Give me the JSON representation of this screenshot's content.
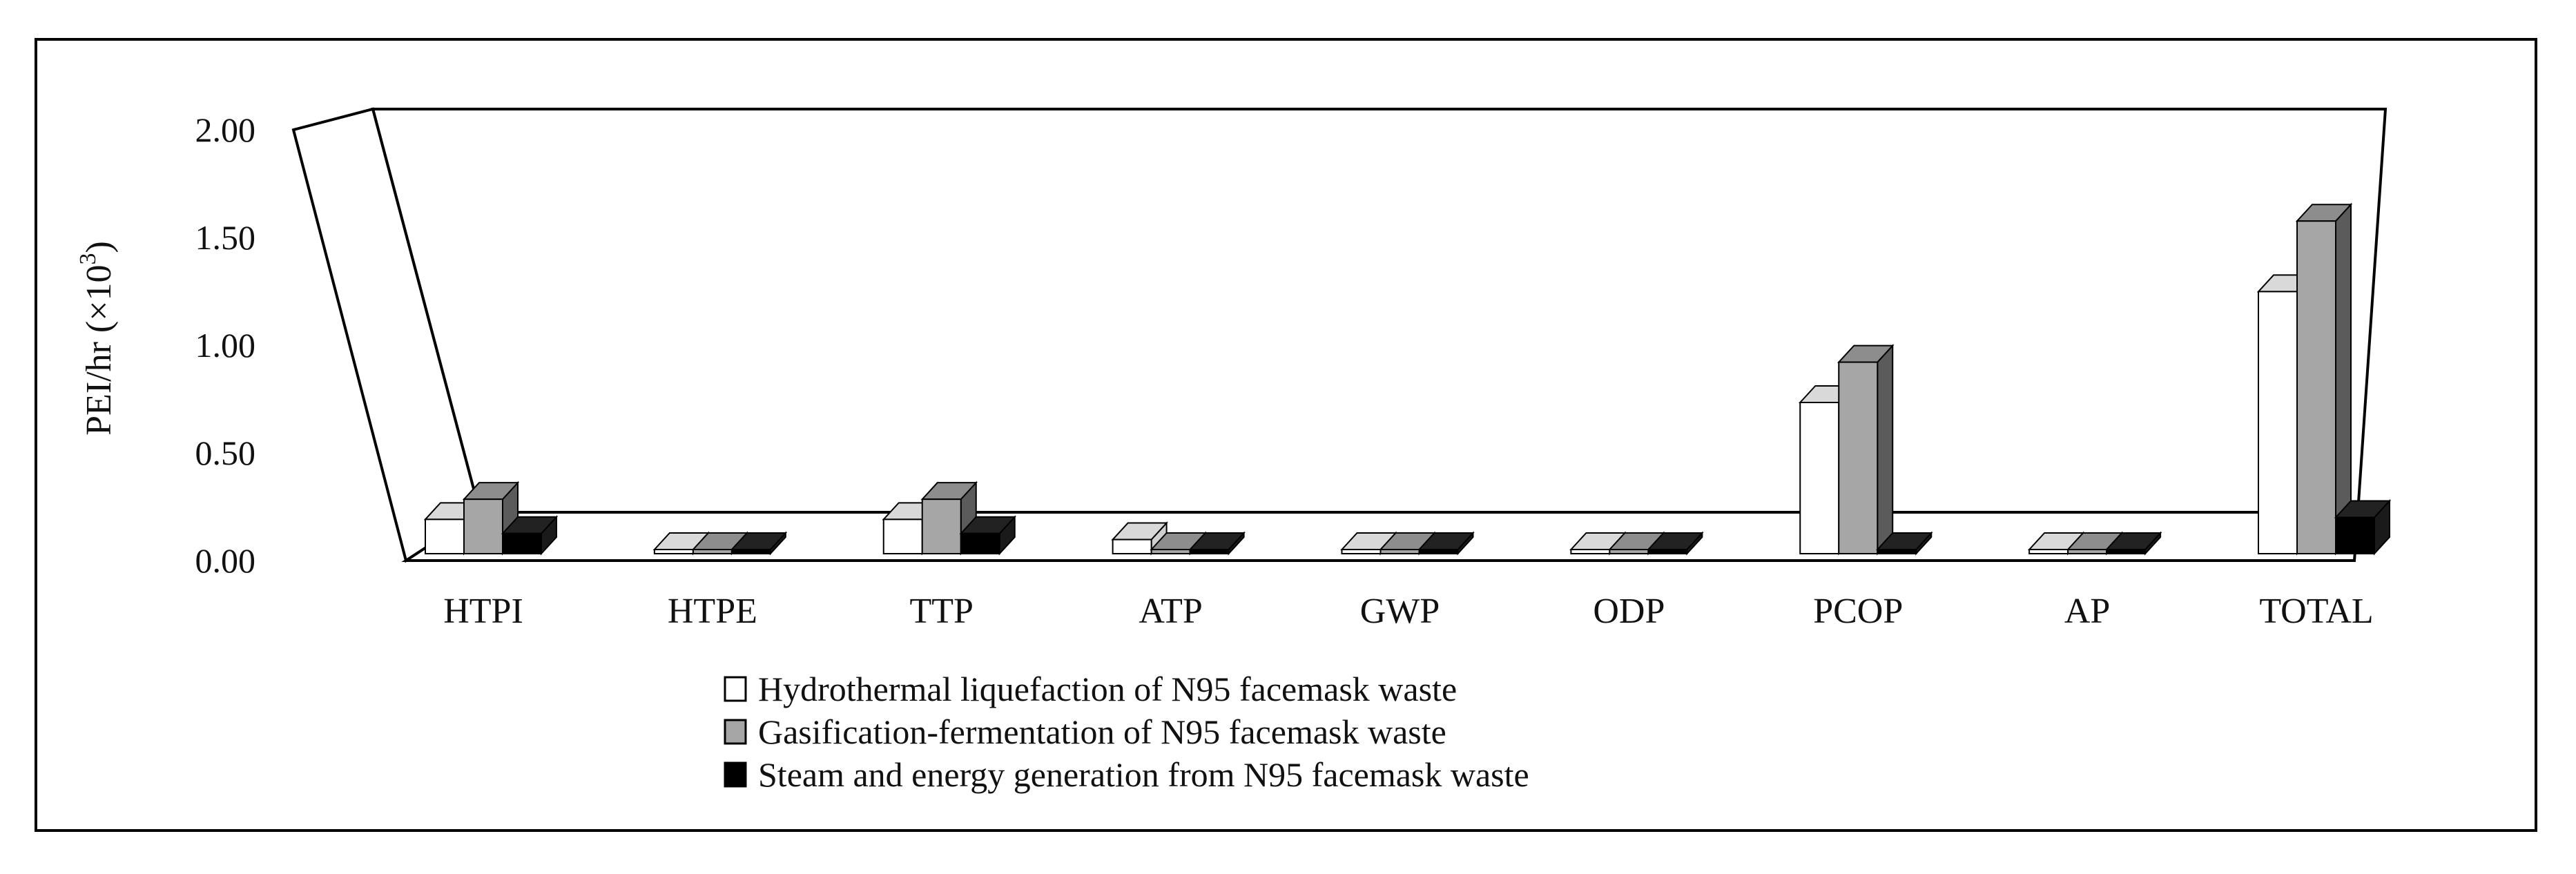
{
  "chart_data": {
    "type": "bar",
    "style": "3d-clustered-column",
    "title": "",
    "xlabel": "",
    "ylabel": "PEI/hr (×10",
    "ylabel_sup": "3",
    "ylabel_suffix": ")",
    "ylim": [
      0,
      2.0
    ],
    "yticks": [
      "0.00",
      "0.50",
      "1.00",
      "1.50",
      "2.00"
    ],
    "ytick_values": [
      0,
      0.5,
      1.0,
      1.5,
      2.0
    ],
    "categories": [
      "HTPI",
      "HTPE",
      "TTP",
      "ATP",
      "GWP",
      "ODP",
      "PCOP",
      "AP",
      "TOTAL"
    ],
    "series": [
      {
        "name": "Hydrothermal liquefaction of N95 facemask waste",
        "color": "#ffffff",
        "values": [
          0.17,
          0.0,
          0.17,
          0.07,
          0.0,
          0.0,
          0.75,
          0.0,
          1.3
        ]
      },
      {
        "name": "Gasification-fermentation of N95 facemask waste",
        "color": "#a6a6a6",
        "values": [
          0.27,
          0.0,
          0.27,
          0.02,
          0.0,
          0.0,
          0.95,
          0.02,
          1.65
        ]
      },
      {
        "name": "Steam and energy generation from N95 facemask waste",
        "color": "#000000",
        "values": [
          0.1,
          0.0,
          0.1,
          0.01,
          0.0,
          0.0,
          0.01,
          0.0,
          0.18
        ]
      }
    ],
    "legend_position": "bottom-center",
    "grid": false
  }
}
